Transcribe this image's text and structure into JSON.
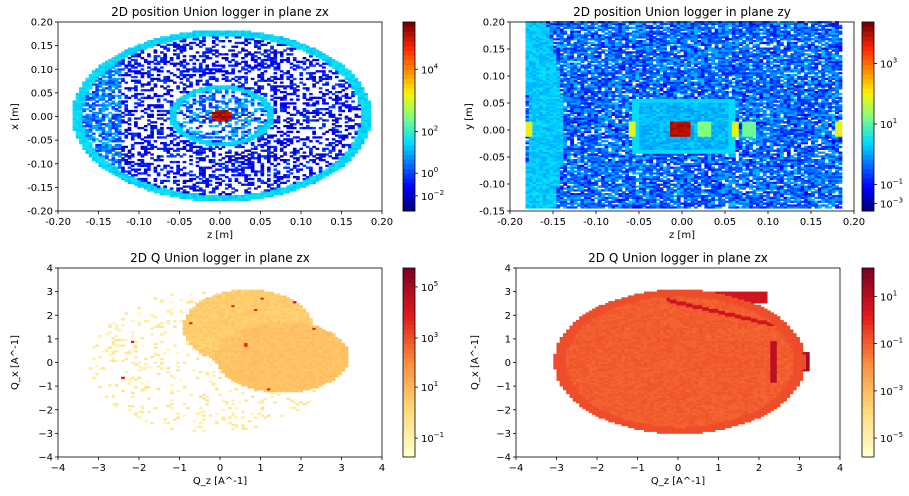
{
  "chart_data": [
    {
      "type": "heatmap",
      "title": "2D position Union logger in plane zx",
      "xlabel": "z [m]",
      "ylabel": "x [m]",
      "xlim": [
        -0.2,
        0.2
      ],
      "ylim": [
        -0.2,
        0.2
      ],
      "x_ticks": [
        "-0.20",
        "-0.15",
        "-0.10",
        "-0.05",
        "0.00",
        "0.05",
        "0.10",
        "0.15",
        "0.20"
      ],
      "y_ticks": [
        "-0.20",
        "-0.15",
        "-0.10",
        "-0.05",
        "0.00",
        "0.05",
        "0.10",
        "0.15",
        "0.20"
      ],
      "colormap": "jet",
      "colorbar": {
        "scale": "log",
        "ticks": [
          {
            "base": "10",
            "exp": "4"
          },
          {
            "base": "10",
            "exp": "2"
          },
          {
            "base": "10",
            "exp": "0"
          },
          {
            "base": "10",
            "exp": "−2"
          }
        ]
      },
      "features": {
        "outer_ring_radius": 0.18,
        "inner_ring_center": [
          0.0,
          0.0
        ],
        "inner_ring_radii": [
          0.06,
          0.035
        ],
        "peak": [
          0.0,
          0.0
        ]
      }
    },
    {
      "type": "heatmap",
      "title": "2D position Union logger in plane zy",
      "xlabel": "z [m]",
      "ylabel": "y [m]",
      "xlim": [
        -0.2,
        0.2
      ],
      "ylim": [
        -0.15,
        0.2
      ],
      "x_ticks": [
        "-0.20",
        "-0.15",
        "-0.10",
        "-0.05",
        "0.00",
        "0.05",
        "0.10",
        "0.15",
        "0.20"
      ],
      "y_ticks": [
        "-0.15",
        "-0.10",
        "-0.05",
        "0.00",
        "0.05",
        "0.10",
        "0.15",
        "0.20"
      ],
      "colormap": "jet",
      "colorbar": {
        "scale": "log",
        "ticks": [
          {
            "base": "10",
            "exp": "3"
          },
          {
            "base": "10",
            "exp": "1"
          },
          {
            "base": "10",
            "exp": "−1"
          },
          {
            "base": "10",
            "exp": "−3"
          }
        ]
      },
      "features": {
        "box_z": [
          -0.06,
          0.06
        ],
        "box_y": [
          -0.045,
          0.055
        ],
        "peak_z": [
          -0.01,
          0.01
        ]
      }
    },
    {
      "type": "heatmap",
      "title": "2D Q Union logger in plane zx",
      "xlabel": "Q_z [A^-1]",
      "ylabel": "Q_x [A^-1]",
      "xlim": [
        -4,
        4
      ],
      "ylim": [
        -4,
        4
      ],
      "x_ticks": [
        "−4",
        "−3",
        "−2",
        "−1",
        "0",
        "1",
        "2",
        "3",
        "4"
      ],
      "y_ticks": [
        "−4",
        "−3",
        "−2",
        "−1",
        "0",
        "1",
        "2",
        "3",
        "4"
      ],
      "colormap": "YlOrRd",
      "colorbar": {
        "scale": "log",
        "ticks": [
          {
            "base": "10",
            "exp": "5"
          },
          {
            "base": "10",
            "exp": "3"
          },
          {
            "base": "10",
            "exp": "1"
          },
          {
            "base": "10",
            "exp": "−1"
          }
        ]
      },
      "features": {
        "disk1_center": [
          0.7,
          1.5
        ],
        "disk2_center": [
          1.5,
          0.2
        ],
        "disk_radius": 1.6
      }
    },
    {
      "type": "heatmap",
      "title": "2D Q Union logger in plane zx",
      "xlabel": "Q_z [A^-1]",
      "ylabel": "Q_x [A^-1]",
      "xlim": [
        -4,
        4
      ],
      "ylim": [
        -4,
        4
      ],
      "x_ticks": [
        "−4",
        "−3",
        "−2",
        "−1",
        "0",
        "1",
        "2",
        "3",
        "4"
      ],
      "y_ticks": [
        "−4",
        "−3",
        "−2",
        "−1",
        "0",
        "1",
        "2",
        "3",
        "4"
      ],
      "colormap": "YlOrRd",
      "colorbar": {
        "scale": "log",
        "ticks": [
          {
            "base": "10",
            "exp": "1"
          },
          {
            "base": "10",
            "exp": "−1"
          },
          {
            "base": "10",
            "exp": "−3"
          },
          {
            "base": "10",
            "exp": "−5"
          }
        ]
      },
      "features": {
        "ellipse_center": [
          0.0,
          0.0
        ],
        "ellipse_radius_z": 3.1,
        "ellipse_radius_x": 3.1
      }
    }
  ]
}
